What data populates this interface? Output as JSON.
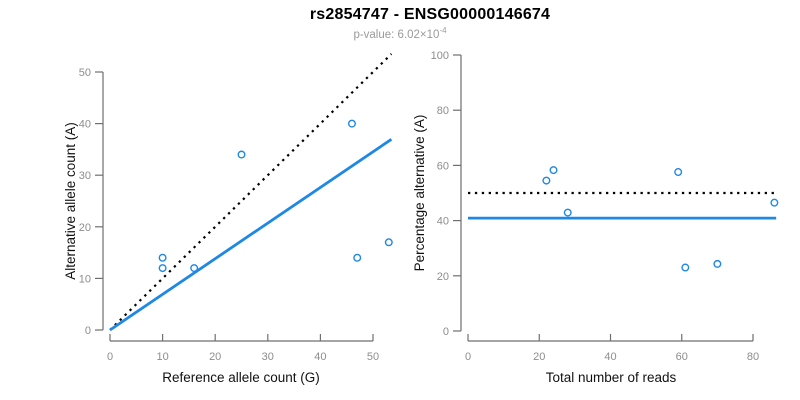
{
  "header": {
    "title": "rs2854747 - ENSG00000146674",
    "p_value_prefix": "p-value: 6.02×10",
    "p_value_exponent": "-4"
  },
  "colors": {
    "accent_blue": "#1E88E5",
    "dotted_line": "#000000",
    "axis_line": "#6f6f6f",
    "tick_label": "#8d8d8d",
    "axis_title": "#111111",
    "title": "#000000",
    "subtitle": "#9a9a9a"
  },
  "chart_data": [
    {
      "type": "scatter",
      "panel": "left",
      "xlabel": "Reference allele count (G)",
      "ylabel": "Alternative allele count (A)",
      "xlim": [
        0,
        53.5
      ],
      "ylim": [
        0,
        53.5
      ],
      "xticks": [
        0,
        10,
        20,
        30,
        40,
        50
      ],
      "yticks": [
        0,
        10,
        20,
        30,
        40,
        50
      ],
      "grid": false,
      "points": [
        [
          10,
          12
        ],
        [
          10,
          14
        ],
        [
          16,
          12
        ],
        [
          25,
          34
        ],
        [
          46,
          40
        ],
        [
          47,
          14
        ],
        [
          53,
          17
        ]
      ],
      "lines": [
        {
          "name": "identity-line",
          "style": "dotted",
          "color": "#000000",
          "from": [
            0,
            0
          ],
          "to": [
            53.5,
            53.5
          ],
          "meaning": "1:1 expected ratio"
        },
        {
          "name": "fitted-ratio-line",
          "style": "solid",
          "color": "#1E88E5",
          "from": [
            0,
            0
          ],
          "to": [
            53.5,
            36.96
          ],
          "slope": 0.691
        }
      ]
    },
    {
      "type": "scatter",
      "panel": "right",
      "xlabel": "Total number of reads",
      "ylabel": "Percentage alternative (A)",
      "xlim": [
        0,
        86.5
      ],
      "ylim": [
        0,
        100
      ],
      "xticks": [
        0,
        20,
        40,
        60,
        80
      ],
      "yticks": [
        0,
        20,
        40,
        60,
        80,
        100
      ],
      "grid": false,
      "points": [
        [
          22,
          54.5
        ],
        [
          24,
          58.3
        ],
        [
          28,
          42.9
        ],
        [
          59,
          57.6
        ],
        [
          61,
          23
        ],
        [
          70,
          24.3
        ],
        [
          86,
          46.5
        ]
      ],
      "lines": [
        {
          "name": "null-50pct-line",
          "style": "dotted",
          "color": "#000000",
          "from": [
            0,
            50
          ],
          "to": [
            86.5,
            50
          ],
          "meaning": "50% expectation"
        },
        {
          "name": "mean-pct-line",
          "style": "solid",
          "color": "#1E88E5",
          "from": [
            0,
            40.9
          ],
          "to": [
            86.5,
            40.9
          ],
          "value": 40.9
        }
      ]
    }
  ]
}
